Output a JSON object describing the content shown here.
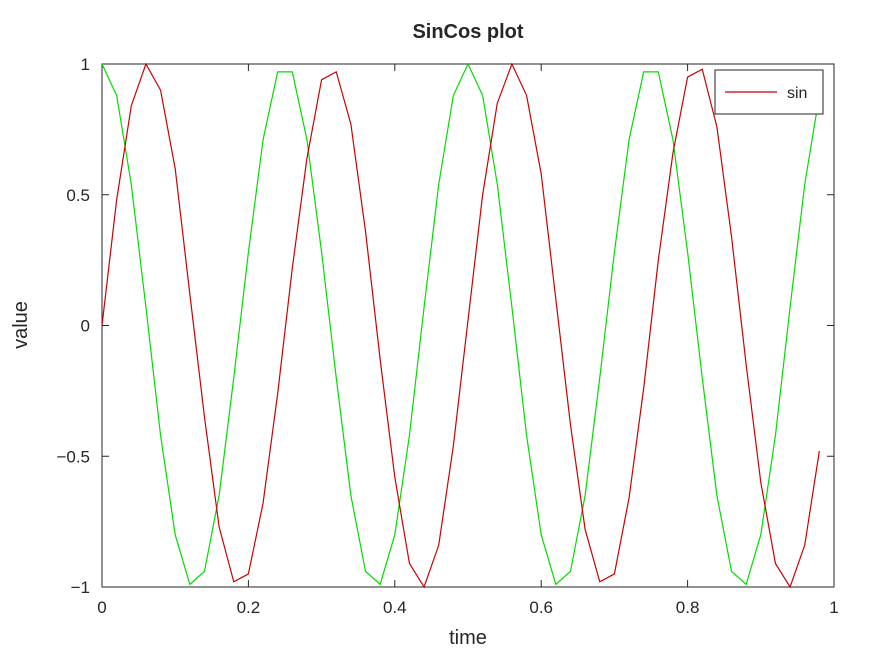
{
  "chart_data": {
    "type": "line",
    "title": "SinCos plot",
    "xlabel": "time",
    "ylabel": "value",
    "xlim": [
      0,
      1
    ],
    "ylim": [
      -1,
      1
    ],
    "x_ticks": [
      0,
      0.2,
      0.4,
      0.6,
      0.8,
      1
    ],
    "x_tick_labels": [
      "0",
      "0.2",
      "0.4",
      "0.6",
      "0.8",
      "1"
    ],
    "y_ticks": [
      -1,
      -0.5,
      0,
      0.5,
      1
    ],
    "y_tick_labels": [
      "−1",
      "−0.5",
      "0",
      "0.5",
      "1"
    ],
    "grid": false,
    "legend_position": "top-right",
    "x": [
      0,
      0.02,
      0.04,
      0.06,
      0.08,
      0.1,
      0.12,
      0.14,
      0.16,
      0.18,
      0.2,
      0.22,
      0.24,
      0.26,
      0.28,
      0.3,
      0.32,
      0.34,
      0.36,
      0.38,
      0.4,
      0.42,
      0.44,
      0.46,
      0.48,
      0.5,
      0.52,
      0.54,
      0.56,
      0.58,
      0.6,
      0.62,
      0.64,
      0.66,
      0.68,
      0.7,
      0.72,
      0.74,
      0.76,
      0.78,
      0.8,
      0.82,
      0.84,
      0.86,
      0.88,
      0.9,
      0.92,
      0.94,
      0.96,
      0.98
    ],
    "series": [
      {
        "name": "sin",
        "color": "#cc0000",
        "values": [
          0,
          0.48,
          0.84,
          1.0,
          0.9,
          0.6,
          0.12,
          -0.35,
          -0.77,
          -0.98,
          -0.95,
          -0.68,
          -0.26,
          0.22,
          0.64,
          0.94,
          0.97,
          0.77,
          0.36,
          -0.13,
          -0.58,
          -0.91,
          -1.0,
          -0.84,
          -0.46,
          0.02,
          0.5,
          0.85,
          1.0,
          0.88,
          0.58,
          0.1,
          -0.38,
          -0.78,
          -0.98,
          -0.95,
          -0.66,
          -0.24,
          0.25,
          0.66,
          0.95,
          0.98,
          0.76,
          0.34,
          -0.15,
          -0.6,
          -0.91,
          -1.0,
          -0.84,
          -0.48
        ]
      },
      {
        "color": "#00dd00",
        "values": [
          1.0,
          0.88,
          0.54,
          0.07,
          -0.42,
          -0.8,
          -0.99,
          -0.94,
          -0.65,
          -0.2,
          0.28,
          0.71,
          0.97,
          0.97,
          0.71,
          0.28,
          -0.2,
          -0.65,
          -0.94,
          -0.99,
          -0.8,
          -0.42,
          0.07,
          0.54,
          0.88,
          1.0,
          0.88,
          0.54,
          0.07,
          -0.42,
          -0.8,
          -0.99,
          -0.94,
          -0.65,
          -0.2,
          0.28,
          0.71,
          0.97,
          0.97,
          0.71,
          0.28,
          -0.2,
          -0.65,
          -0.94,
          -0.99,
          -0.8,
          -0.42,
          0.07,
          0.54,
          0.88
        ]
      }
    ]
  }
}
